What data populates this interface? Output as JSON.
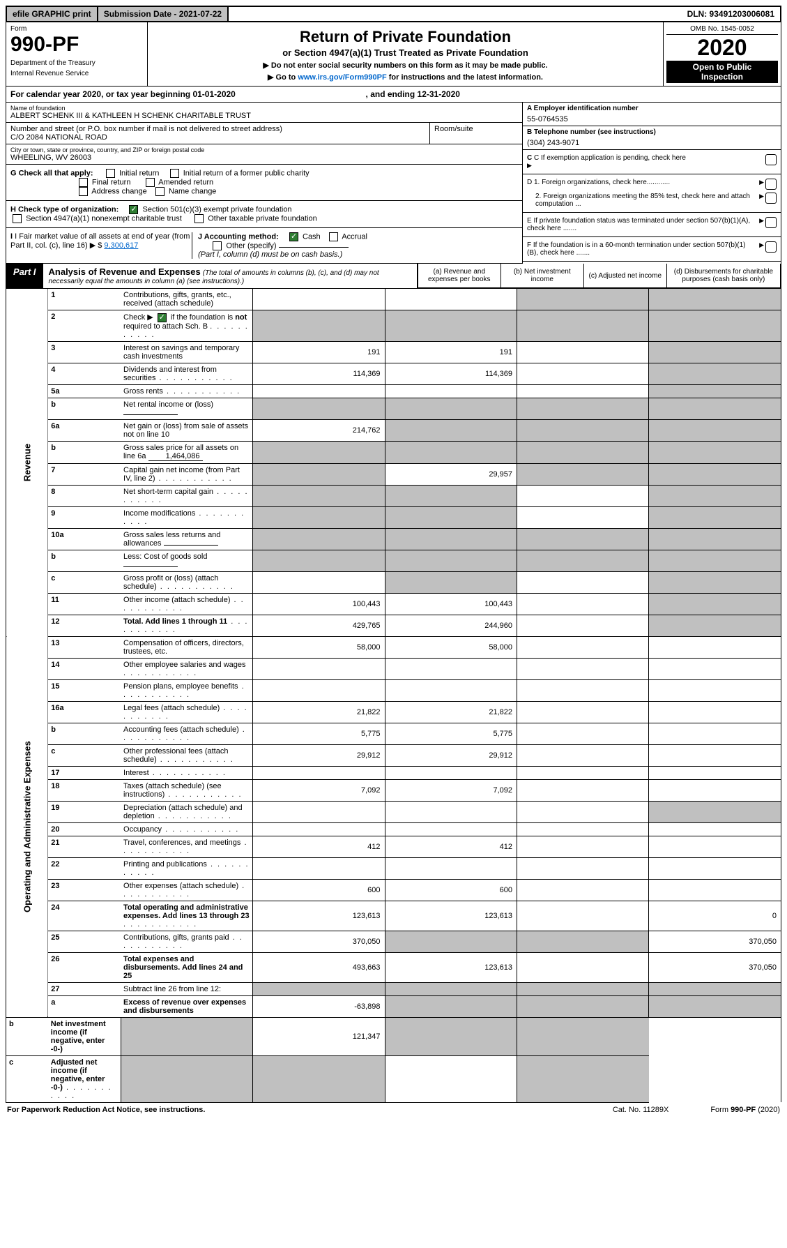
{
  "topbar": {
    "efile": "efile GRAPHIC print",
    "submission_label": "Submission Date - 2021-07-22",
    "dln": "DLN: 93491203006081"
  },
  "header": {
    "form_word": "Form",
    "form_no": "990-PF",
    "dept": "Department of the Treasury",
    "irs": "Internal Revenue Service",
    "title": "Return of Private Foundation",
    "subtitle": "or Section 4947(a)(1) Trust Treated as Private Foundation",
    "note1": "Do not enter social security numbers on this form as it may be made public.",
    "note2_a": "Go to ",
    "note2_link": "www.irs.gov/Form990PF",
    "note2_b": " for instructions and the latest information.",
    "omb": "OMB No. 1545-0052",
    "year": "2020",
    "inspect1": "Open to Public",
    "inspect2": "Inspection"
  },
  "calendar": {
    "prefix": "For calendar year 2020, or tax year beginning ",
    "begin": "01-01-2020",
    "mid": ", and ending ",
    "end": "12-31-2020"
  },
  "entity": {
    "name_label": "Name of foundation",
    "name": "ALBERT SCHENK III & KATHLEEN H SCHENK CHARITABLE TRUST",
    "addr_label": "Number and street (or P.O. box number if mail is not delivered to street address)",
    "addr": "C/O 2084 NATIONAL ROAD",
    "room_label": "Room/suite",
    "city_label": "City or town, state or province, country, and ZIP or foreign postal code",
    "city": "WHEELING, WV  26003",
    "ein_label": "A Employer identification number",
    "ein": "55-0764535",
    "phone_label": "B Telephone number (see instructions)",
    "phone": "(304) 243-9071",
    "c_label": "C If exemption application is pending, check here",
    "d1": "D 1. Foreign organizations, check here............",
    "d2": "2. Foreign organizations meeting the 85% test, check here and attach computation ...",
    "e_label": "E  If private foundation status was terminated under section 507(b)(1)(A), check here .......",
    "f_label": "F  If the foundation is in a 60-month termination under section 507(b)(1)(B), check here .......",
    "g_label": "G Check all that apply:",
    "g_opts": {
      "initial": "Initial return",
      "initial_former": "Initial return of a former public charity",
      "final": "Final return",
      "amended": "Amended return",
      "addr_change": "Address change",
      "name_change": "Name change"
    },
    "h_label": "H Check type of organization:",
    "h_501c3": "Section 501(c)(3) exempt private foundation",
    "h_4947": "Section 4947(a)(1) nonexempt charitable trust",
    "h_other": "Other taxable private foundation",
    "i_label": "I Fair market value of all assets at end of year (from Part II, col. (c), line 16)",
    "i_amount": "9,300,617",
    "j_label": "J Accounting method:",
    "j_cash": "Cash",
    "j_accrual": "Accrual",
    "j_other": "Other (specify)",
    "j_note": "(Part I, column (d) must be on cash basis.)"
  },
  "part1": {
    "label": "Part I",
    "title": "Analysis of Revenue and Expenses",
    "note": "(The total of amounts in columns (b), (c), and (d) may not necessarily equal the amounts in column (a) (see instructions).)",
    "cols": {
      "a": "(a) Revenue and expenses per books",
      "b": "(b) Net investment income",
      "c": "(c) Adjusted net income",
      "d": "(d) Disbursements for charitable purposes (cash basis only)"
    },
    "side_revenue": "Revenue",
    "side_expenses": "Operating and Administrative Expenses"
  },
  "rows": [
    {
      "n": "1",
      "d": "Contributions, gifts, grants, etc., received (attach schedule)",
      "a": "",
      "b": "",
      "c": "grey",
      "dcol": "grey"
    },
    {
      "n": "2",
      "d": "Check ▶ [x] if the foundation is not required to attach Sch. B",
      "a": "grey",
      "b": "grey",
      "c": "grey",
      "dcol": "grey",
      "special": "check"
    },
    {
      "n": "3",
      "d": "Interest on savings and temporary cash investments",
      "a": "191",
      "b": "191",
      "c": "",
      "dcol": "grey"
    },
    {
      "n": "4",
      "d": "Dividends and interest from securities",
      "a": "114,369",
      "b": "114,369",
      "c": "",
      "dcol": "grey",
      "dots": true
    },
    {
      "n": "5a",
      "d": "Gross rents",
      "a": "",
      "b": "",
      "c": "",
      "dcol": "grey",
      "dots": true
    },
    {
      "n": "b",
      "d": "Net rental income or (loss)",
      "a": "grey",
      "b": "grey",
      "c": "grey",
      "dcol": "grey",
      "inline": ""
    },
    {
      "n": "6a",
      "d": "Net gain or (loss) from sale of assets not on line 10",
      "a": "214,762",
      "b": "grey",
      "c": "grey",
      "dcol": "grey"
    },
    {
      "n": "b",
      "d": "Gross sales price for all assets on line 6a",
      "a": "grey",
      "b": "grey",
      "c": "grey",
      "dcol": "grey",
      "inline": "1,464,086"
    },
    {
      "n": "7",
      "d": "Capital gain net income (from Part IV, line 2)",
      "a": "grey",
      "b": "29,957",
      "c": "grey",
      "dcol": "grey",
      "dots": true
    },
    {
      "n": "8",
      "d": "Net short-term capital gain",
      "a": "grey",
      "b": "grey",
      "c": "",
      "dcol": "grey",
      "dots": true
    },
    {
      "n": "9",
      "d": "Income modifications",
      "a": "grey",
      "b": "grey",
      "c": "",
      "dcol": "grey",
      "dots": true
    },
    {
      "n": "10a",
      "d": "Gross sales less returns and allowances",
      "a": "grey",
      "b": "grey",
      "c": "grey",
      "dcol": "grey",
      "inline": ""
    },
    {
      "n": "b",
      "d": "Less: Cost of goods sold",
      "a": "grey",
      "b": "grey",
      "c": "grey",
      "dcol": "grey",
      "inline": "",
      "dots": true
    },
    {
      "n": "c",
      "d": "Gross profit or (loss) (attach schedule)",
      "a": "",
      "b": "grey",
      "c": "",
      "dcol": "grey",
      "dots": true
    },
    {
      "n": "11",
      "d": "Other income (attach schedule)",
      "a": "100,443",
      "b": "100,443",
      "c": "",
      "dcol": "grey",
      "dots": true
    },
    {
      "n": "12",
      "d": "Total. Add lines 1 through 11",
      "a": "429,765",
      "b": "244,960",
      "c": "",
      "dcol": "grey",
      "bold": true,
      "dots": true
    },
    {
      "n": "13",
      "d": "Compensation of officers, directors, trustees, etc.",
      "a": "58,000",
      "b": "58,000",
      "c": "",
      "dcol": ""
    },
    {
      "n": "14",
      "d": "Other employee salaries and wages",
      "a": "",
      "b": "",
      "c": "",
      "dcol": "",
      "dots": true
    },
    {
      "n": "15",
      "d": "Pension plans, employee benefits",
      "a": "",
      "b": "",
      "c": "",
      "dcol": "",
      "dots": true
    },
    {
      "n": "16a",
      "d": "Legal fees (attach schedule)",
      "a": "21,822",
      "b": "21,822",
      "c": "",
      "dcol": "",
      "dots": true
    },
    {
      "n": "b",
      "d": "Accounting fees (attach schedule)",
      "a": "5,775",
      "b": "5,775",
      "c": "",
      "dcol": "",
      "dots": true
    },
    {
      "n": "c",
      "d": "Other professional fees (attach schedule)",
      "a": "29,912",
      "b": "29,912",
      "c": "",
      "dcol": "",
      "dots": true
    },
    {
      "n": "17",
      "d": "Interest",
      "a": "",
      "b": "",
      "c": "",
      "dcol": "",
      "dots": true
    },
    {
      "n": "18",
      "d": "Taxes (attach schedule) (see instructions)",
      "a": "7,092",
      "b": "7,092",
      "c": "",
      "dcol": "",
      "dots": true
    },
    {
      "n": "19",
      "d": "Depreciation (attach schedule) and depletion",
      "a": "",
      "b": "",
      "c": "",
      "dcol": "grey",
      "dots": true
    },
    {
      "n": "20",
      "d": "Occupancy",
      "a": "",
      "b": "",
      "c": "",
      "dcol": "",
      "dots": true
    },
    {
      "n": "21",
      "d": "Travel, conferences, and meetings",
      "a": "412",
      "b": "412",
      "c": "",
      "dcol": "",
      "dots": true
    },
    {
      "n": "22",
      "d": "Printing and publications",
      "a": "",
      "b": "",
      "c": "",
      "dcol": "",
      "dots": true
    },
    {
      "n": "23",
      "d": "Other expenses (attach schedule)",
      "a": "600",
      "b": "600",
      "c": "",
      "dcol": "",
      "dots": true
    },
    {
      "n": "24",
      "d": "Total operating and administrative expenses. Add lines 13 through 23",
      "a": "123,613",
      "b": "123,613",
      "c": "",
      "dcol": "0",
      "bold": true,
      "dots": true
    },
    {
      "n": "25",
      "d": "Contributions, gifts, grants paid",
      "a": "370,050",
      "b": "grey",
      "c": "grey",
      "dcol": "370,050",
      "dots": true
    },
    {
      "n": "26",
      "d": "Total expenses and disbursements. Add lines 24 and 25",
      "a": "493,663",
      "b": "123,613",
      "c": "",
      "dcol": "370,050",
      "bold": true
    },
    {
      "n": "27",
      "d": "Subtract line 26 from line 12:",
      "a": "grey",
      "b": "grey",
      "c": "grey",
      "dcol": "grey"
    },
    {
      "n": "a",
      "d": "Excess of revenue over expenses and disbursements",
      "a": "-63,898",
      "b": "grey",
      "c": "grey",
      "dcol": "grey",
      "bold": true
    },
    {
      "n": "b",
      "d": "Net investment income (if negative, enter -0-)",
      "a": "grey",
      "b": "121,347",
      "c": "grey",
      "dcol": "grey",
      "bold": true
    },
    {
      "n": "c",
      "d": "Adjusted net income (if negative, enter -0-)",
      "a": "grey",
      "b": "grey",
      "c": "",
      "dcol": "grey",
      "bold": true,
      "dots": true
    }
  ],
  "footer": {
    "left": "For Paperwork Reduction Act Notice, see instructions.",
    "mid": "Cat. No. 11289X",
    "right": "Form 990-PF (2020)"
  }
}
